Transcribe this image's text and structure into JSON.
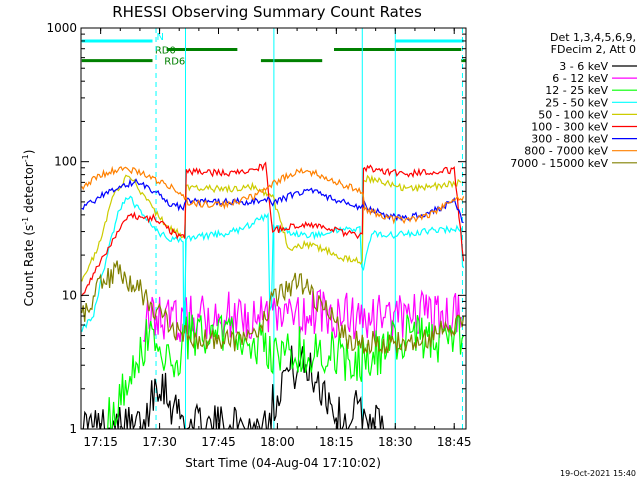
{
  "chart_data": {
    "type": "line",
    "title": "RHESSI Observing Summary Count Rates",
    "xlabel": "Start Time (04-Aug-04 17:10:02)",
    "ylabel": "Count Rate (s⁻¹ detector⁻¹)",
    "ylabel_parts": [
      "Count Rate (s",
      "-1",
      " detector",
      "-1",
      ")"
    ],
    "y_scale": "log",
    "ylim": [
      1,
      1000
    ],
    "xlim_minutes": [
      17.1667,
      18.8
    ],
    "x_ticks": [
      {
        "t": 17.25,
        "label": "17:15"
      },
      {
        "t": 17.5,
        "label": "17:30"
      },
      {
        "t": 17.75,
        "label": "17:45"
      },
      {
        "t": 18.0,
        "label": "18:00"
      },
      {
        "t": 18.25,
        "label": "18:15"
      },
      {
        "t": 18.5,
        "label": "18:30"
      },
      {
        "t": 18.75,
        "label": "18:45"
      }
    ],
    "y_ticks": [
      {
        "v": 1,
        "label": "1"
      },
      {
        "v": 10,
        "label": "10"
      },
      {
        "v": 100,
        "label": "100"
      },
      {
        "v": 1000,
        "label": "1000"
      }
    ],
    "legend_header": [
      "Det 1,3,4,5,6,9,",
      "FDecim 2, Att 0"
    ],
    "legend_placement": "right",
    "timestamp": "19-Oct-2021 15:40",
    "flags": [
      {
        "label": "N",
        "color": "#00ffff",
        "y": 800,
        "segments": [
          [
            17.17,
            17.47
          ],
          [
            18.5,
            18.79
          ]
        ]
      },
      {
        "label": "RD0",
        "color": "#008000",
        "y": 690,
        "segments": [
          [
            17.53,
            17.83
          ],
          [
            18.24,
            18.78
          ]
        ]
      },
      {
        "label": "RD6",
        "color": "#008000",
        "y": 570,
        "segments": [
          [
            17.17,
            17.47
          ],
          [
            17.93,
            18.19
          ],
          [
            18.78,
            18.8
          ]
        ]
      }
    ],
    "vlines_dashed": [
      17.485,
      18.785
    ],
    "vlines_solid": [
      17.61,
      17.985,
      18.36,
      18.5
    ],
    "series": [
      {
        "name": "3 - 6 keV",
        "color": "#000000",
        "x": [
          17.17,
          17.44,
          17.46,
          17.5,
          17.55,
          17.6,
          17.62,
          17.92,
          17.98,
          18.02,
          18.08,
          18.14,
          18.2,
          18.28,
          18.32,
          18.38,
          18.45
        ],
        "y": [
          1,
          1,
          1.8,
          2.5,
          1.6,
          1.2,
          1,
          1,
          1.5,
          2.5,
          3,
          2.7,
          2,
          1,
          1.4,
          1.2,
          1
        ]
      },
      {
        "name": "6 - 12 keV",
        "color": "#ff00ff",
        "x": [
          17.43,
          17.5,
          17.6,
          17.62,
          17.7,
          17.8,
          17.9,
          17.98,
          18.05,
          18.15,
          18.22,
          18.3,
          18.4,
          18.5,
          18.6,
          18.7,
          18.78
        ],
        "y": [
          6.5,
          6.6,
          6.7,
          7.1,
          7.0,
          7.1,
          7.0,
          7.2,
          7.4,
          7.3,
          7.2,
          6.9,
          7.0,
          7.0,
          7.1,
          7.0,
          6.9
        ]
      },
      {
        "name": "12 - 25 keV",
        "color": "#00ff00",
        "x": [
          17.28,
          17.33,
          17.4,
          17.45,
          17.5,
          17.58,
          17.62,
          17.7,
          17.8,
          17.9,
          17.98,
          18.05,
          18.15,
          18.25,
          18.35,
          18.45,
          18.55,
          18.65,
          18.75,
          18.79
        ],
        "y": [
          1.2,
          1.7,
          3.5,
          5.0,
          4.0,
          3.5,
          5.0,
          5.4,
          5.3,
          4.7,
          3.5,
          3.8,
          4.0,
          3.6,
          3.2,
          4.0,
          4.8,
          4.6,
          4.5,
          5.0
        ]
      },
      {
        "name": "25 - 50 keV",
        "color": "#00ffff",
        "x": [
          17.17,
          17.22,
          17.26,
          17.3,
          17.33,
          17.37,
          17.42,
          17.47,
          17.53,
          17.6,
          17.605,
          17.62,
          17.7,
          17.78,
          17.84,
          17.9,
          17.96,
          17.975,
          17.99,
          18.05,
          18.12,
          18.2,
          18.26,
          18.35,
          18.365,
          18.4,
          18.5,
          18.6,
          18.7,
          18.78,
          18.79
        ],
        "y": [
          5.5,
          7,
          15,
          28,
          45,
          55,
          42,
          32,
          27,
          26,
          5.5,
          27,
          28,
          29,
          31,
          35,
          40,
          8,
          32,
          30,
          28,
          28.5,
          31,
          32,
          16,
          29,
          28,
          30,
          31,
          32,
          16
        ]
      },
      {
        "name": "50 - 100 keV",
        "color": "#cccc00",
        "x": [
          17.17,
          17.25,
          17.3,
          17.37,
          17.42,
          17.47,
          17.53,
          17.6,
          17.62,
          17.7,
          17.8,
          17.9,
          17.98,
          18.05,
          18.12,
          18.2,
          18.28,
          18.36,
          18.37,
          18.45,
          18.55,
          18.65,
          18.78
        ],
        "y": [
          13,
          25,
          55,
          80,
          60,
          45,
          33,
          28,
          65,
          63,
          62,
          65,
          55,
          22,
          24,
          22,
          19,
          18,
          75,
          70,
          62,
          65,
          70
        ]
      },
      {
        "name": "100 - 300 keV",
        "color": "#ff0000",
        "x": [
          17.17,
          17.25,
          17.32,
          17.38,
          17.42,
          17.48,
          17.55,
          17.6,
          17.62,
          17.7,
          17.8,
          17.9,
          17.95,
          17.98,
          18.05,
          18.12,
          18.2,
          18.3,
          18.36,
          18.37,
          18.45,
          18.55,
          18.65,
          18.75,
          18.79
        ],
        "y": [
          10,
          18,
          30,
          40,
          37,
          38,
          30,
          27,
          85,
          83,
          82,
          86,
          95,
          30,
          33,
          34,
          32,
          29,
          28,
          90,
          85,
          82,
          83,
          87,
          18
        ]
      },
      {
        "name": "300 - 800 keV",
        "color": "#0000ff",
        "x": [
          17.17,
          17.25,
          17.33,
          17.4,
          17.45,
          17.5,
          17.55,
          17.6,
          17.62,
          17.7,
          17.8,
          17.9,
          17.96,
          17.98,
          18.05,
          18.12,
          18.2,
          18.3,
          18.36,
          18.37,
          18.45,
          18.55,
          18.65,
          18.75,
          18.79
        ],
        "y": [
          45,
          55,
          65,
          70,
          65,
          56,
          48,
          45,
          52,
          50,
          50,
          50,
          52,
          48,
          55,
          62,
          56,
          48,
          46,
          47,
          40,
          38,
          42,
          50,
          35
        ]
      },
      {
        "name": "800 - 7000 keV",
        "color": "#ff8000",
        "x": [
          17.17,
          17.25,
          17.33,
          17.4,
          17.47,
          17.55,
          17.6,
          17.62,
          17.7,
          17.8,
          17.9,
          17.98,
          18.05,
          18.12,
          18.2,
          18.3,
          18.36,
          18.37,
          18.45,
          18.55,
          18.65,
          18.75,
          18.79
        ],
        "y": [
          65,
          80,
          88,
          85,
          75,
          65,
          55,
          50,
          48,
          48,
          55,
          68,
          80,
          85,
          78,
          65,
          60,
          45,
          38,
          36,
          40,
          52,
          55
        ]
      },
      {
        "name": "7000 - 15000 keV",
        "color": "#808000",
        "x": [
          17.17,
          17.25,
          17.32,
          17.4,
          17.48,
          17.55,
          17.6,
          17.7,
          17.8,
          17.9,
          17.98,
          18.05,
          18.12,
          18.2,
          18.28,
          18.36,
          18.45,
          18.55,
          18.65,
          18.75,
          18.79
        ],
        "y": [
          7,
          12,
          15,
          12,
          8,
          6,
          5,
          4.5,
          4.6,
          5.0,
          9,
          12,
          12,
          8,
          5,
          4.5,
          4.3,
          4.4,
          4.8,
          6,
          7
        ]
      }
    ]
  }
}
